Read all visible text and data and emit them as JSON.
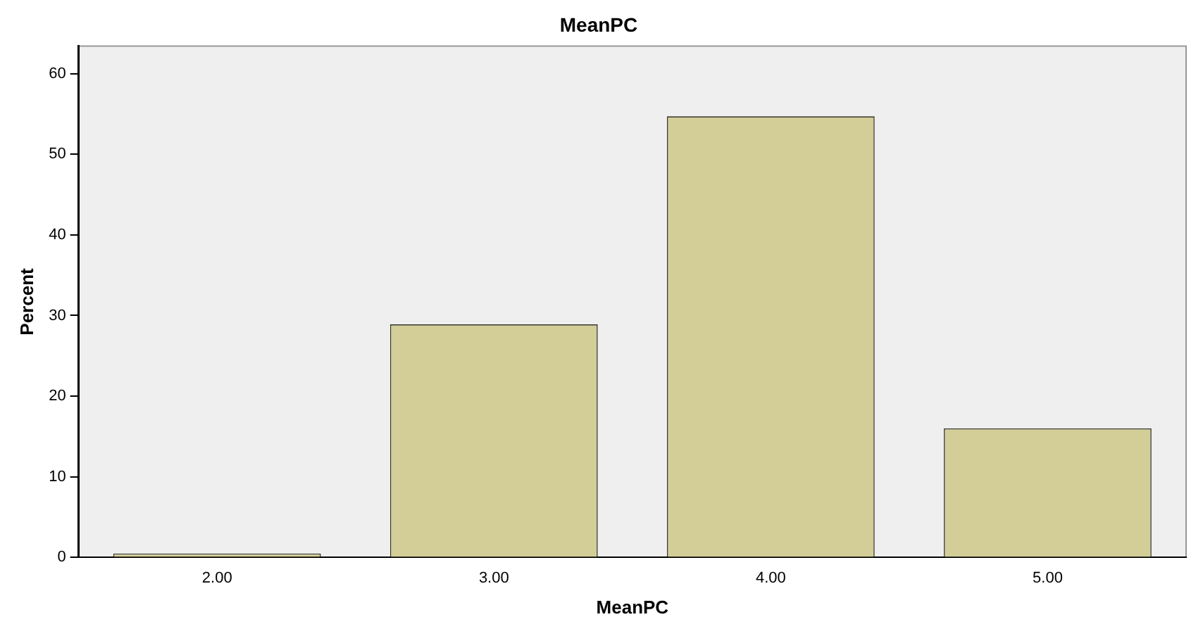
{
  "chart_data": {
    "type": "bar",
    "title": "MeanPC",
    "xlabel": "MeanPC",
    "ylabel": "Percent",
    "categories": [
      "2.00",
      "3.00",
      "4.00",
      "5.00"
    ],
    "values": [
      0.5,
      28.9,
      54.7,
      16.0
    ],
    "color": "#d3ce97",
    "ylim": [
      0,
      63.4
    ],
    "yticks": [
      0,
      10,
      20,
      30,
      40,
      50,
      60
    ],
    "grid": false,
    "legend": false
  }
}
